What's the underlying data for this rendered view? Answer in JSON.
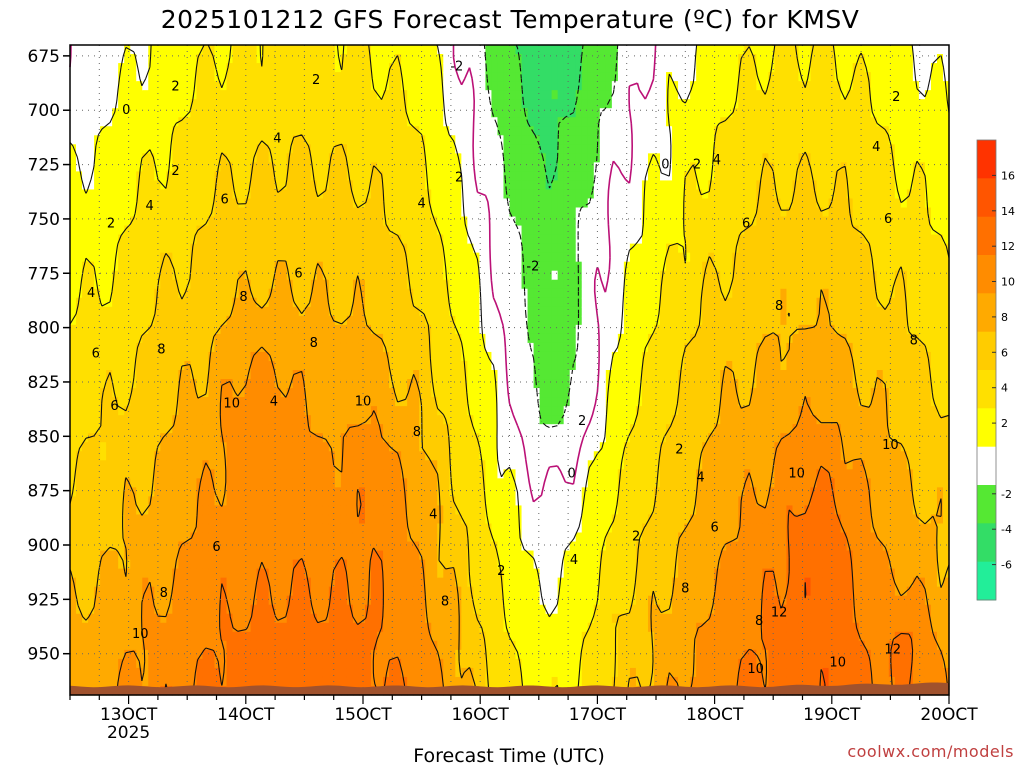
{
  "chart_data": {
    "type": "heatmap",
    "title": "2025101212 GFS Forecast Temperature (ºC) for KMSV",
    "xlabel": "Forecast Time (UTC)",
    "ylabel": "",
    "credit": "coolwx.com/models",
    "x_ticks": [
      {
        "value": 13,
        "label": "13OCT",
        "sub": "2025"
      },
      {
        "value": 14,
        "label": "14OCT",
        "sub": ""
      },
      {
        "value": 15,
        "label": "15OCT",
        "sub": ""
      },
      {
        "value": 16,
        "label": "16OCT",
        "sub": ""
      },
      {
        "value": 17,
        "label": "17OCT",
        "sub": ""
      },
      {
        "value": 18,
        "label": "18OCT",
        "sub": ""
      },
      {
        "value": 19,
        "label": "19OCT",
        "sub": ""
      },
      {
        "value": 20,
        "label": "20OCT",
        "sub": ""
      }
    ],
    "y_ticks": [
      675,
      700,
      725,
      750,
      775,
      800,
      825,
      850,
      875,
      900,
      925,
      950
    ],
    "xlim": [
      12.5,
      20
    ],
    "ylim": [
      969,
      670
    ],
    "surface_pressure": 965,
    "colorbar": {
      "ticks": [
        -6,
        -4,
        -2,
        2,
        4,
        6,
        8,
        10,
        12,
        14,
        16
      ],
      "bands": [
        {
          "min": -8,
          "max": -6,
          "color": "#22ee99"
        },
        {
          "min": -6,
          "max": -4,
          "color": "#33dd66"
        },
        {
          "min": -4,
          "max": -2,
          "color": "#55e833"
        },
        {
          "min": -2,
          "max": 2,
          "color": "#ffffff"
        },
        {
          "min": 2,
          "max": 4,
          "color": "#ffff00"
        },
        {
          "min": 4,
          "max": 6,
          "color": "#ffe000"
        },
        {
          "min": 6,
          "max": 8,
          "color": "#ffcc00"
        },
        {
          "min": 8,
          "max": 10,
          "color": "#ffaa00"
        },
        {
          "min": 10,
          "max": 12,
          "color": "#ff8c00"
        },
        {
          "min": 12,
          "max": 14,
          "color": "#ff7000"
        },
        {
          "min": 14,
          "max": 16,
          "color": "#ff5500"
        },
        {
          "min": 16,
          "max": 18,
          "color": "#ff3300"
        }
      ]
    },
    "contour_labels": [
      {
        "x": 12.98,
        "p": 700,
        "t": "0"
      },
      {
        "x": 13.4,
        "p": 689,
        "t": "2"
      },
      {
        "x": 14.6,
        "p": 686,
        "t": "2"
      },
      {
        "x": 15.8,
        "p": 680,
        "t": "-2"
      },
      {
        "x": 19.55,
        "p": 694,
        "t": "2"
      },
      {
        "x": 13.4,
        "p": 728,
        "t": "2"
      },
      {
        "x": 14.27,
        "p": 713,
        "t": "4"
      },
      {
        "x": 15.5,
        "p": 743,
        "t": "4"
      },
      {
        "x": 15.82,
        "p": 731,
        "t": "2"
      },
      {
        "x": 17.58,
        "p": 725,
        "t": "0"
      },
      {
        "x": 17.85,
        "p": 725,
        "t": "2"
      },
      {
        "x": 18.02,
        "p": 723,
        "t": "4"
      },
      {
        "x": 19.38,
        "p": 717,
        "t": "4"
      },
      {
        "x": 12.85,
        "p": 752,
        "t": "2"
      },
      {
        "x": 13.18,
        "p": 744,
        "t": "4"
      },
      {
        "x": 13.82,
        "p": 741,
        "t": "6"
      },
      {
        "x": 18.27,
        "p": 752,
        "t": "6"
      },
      {
        "x": 19.48,
        "p": 750,
        "t": "6"
      },
      {
        "x": 16.45,
        "p": 772,
        "t": "-2"
      },
      {
        "x": 12.68,
        "p": 784,
        "t": "4"
      },
      {
        "x": 14.45,
        "p": 775,
        "t": "6"
      },
      {
        "x": 13.98,
        "p": 786,
        "t": "8"
      },
      {
        "x": 18.55,
        "p": 790,
        "t": "8"
      },
      {
        "x": 12.72,
        "p": 812,
        "t": "6"
      },
      {
        "x": 13.28,
        "p": 810,
        "t": "8"
      },
      {
        "x": 14.58,
        "p": 807,
        "t": "8"
      },
      {
        "x": 19.7,
        "p": 806,
        "t": "8"
      },
      {
        "x": 13.88,
        "p": 835,
        "t": "10"
      },
      {
        "x": 14.24,
        "p": 834,
        "t": "4"
      },
      {
        "x": 15.0,
        "p": 834,
        "t": "10"
      },
      {
        "x": 12.88,
        "p": 836,
        "t": "6"
      },
      {
        "x": 15.46,
        "p": 848,
        "t": "8"
      },
      {
        "x": 16.87,
        "p": 843,
        "t": "2"
      },
      {
        "x": 17.7,
        "p": 856,
        "t": "2"
      },
      {
        "x": 19.5,
        "p": 854,
        "t": "10"
      },
      {
        "x": 16.78,
        "p": 867,
        "t": "0"
      },
      {
        "x": 18.7,
        "p": 867,
        "t": "10"
      },
      {
        "x": 17.88,
        "p": 869,
        "t": "4"
      },
      {
        "x": 15.6,
        "p": 886,
        "t": "4"
      },
      {
        "x": 18.0,
        "p": 892,
        "t": "6"
      },
      {
        "x": 13.75,
        "p": 901,
        "t": "6"
      },
      {
        "x": 17.33,
        "p": 896,
        "t": "2"
      },
      {
        "x": 16.8,
        "p": 907,
        "t": "4"
      },
      {
        "x": 16.18,
        "p": 912,
        "t": "2"
      },
      {
        "x": 13.3,
        "p": 922,
        "t": "8"
      },
      {
        "x": 15.7,
        "p": 926,
        "t": "8"
      },
      {
        "x": 17.75,
        "p": 920,
        "t": "8"
      },
      {
        "x": 18.38,
        "p": 935,
        "t": "8"
      },
      {
        "x": 18.55,
        "p": 931,
        "t": "12"
      },
      {
        "x": 13.1,
        "p": 941,
        "t": "10"
      },
      {
        "x": 19.52,
        "p": 948,
        "t": "12"
      },
      {
        "x": 18.35,
        "p": 957,
        "t": "10"
      },
      {
        "x": 19.05,
        "p": 954,
        "t": "10"
      }
    ]
  }
}
